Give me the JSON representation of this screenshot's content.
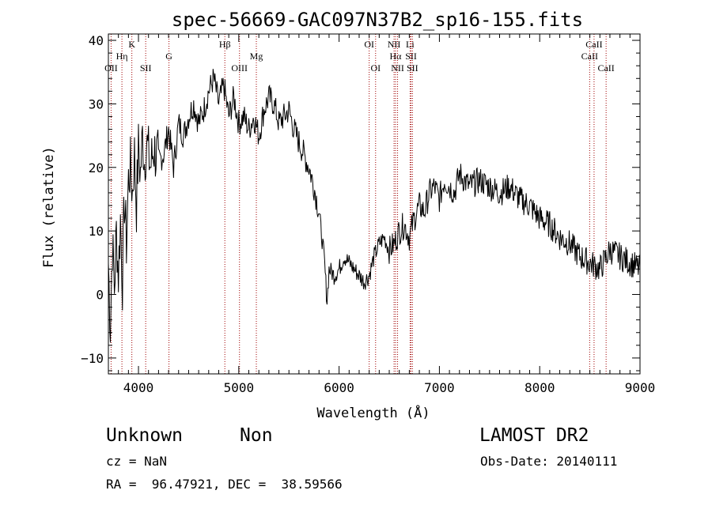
{
  "chart_data": {
    "type": "line",
    "title": "spec-56669-GAC097N37B2_sp16-155.fits",
    "xlabel": "Wavelength (Å)",
    "ylabel": "Flux (relative)",
    "xlim": [
      3700,
      9000
    ],
    "ylim": [
      -12.5,
      41
    ],
    "x_ticks": [
      4000,
      5000,
      6000,
      7000,
      8000,
      9000
    ],
    "y_ticks": [
      -10,
      0,
      10,
      20,
      30,
      40
    ],
    "grid": false,
    "series": [
      {
        "color": "#000000",
        "x": [
          3700,
          3720,
          3740,
          3760,
          3780,
          3800,
          3820,
          3840,
          3860,
          3880,
          3900,
          3920,
          3940,
          3960,
          3980,
          4000,
          4020,
          4040,
          4060,
          4080,
          4100,
          4120,
          4150,
          4200,
          4250,
          4300,
          4350,
          4400,
          4450,
          4500,
          4550,
          4600,
          4650,
          4700,
          4750,
          4800,
          4850,
          4900,
          4950,
          5000,
          5050,
          5100,
          5150,
          5200,
          5250,
          5300,
          5350,
          5400,
          5450,
          5500,
          5550,
          5600,
          5650,
          5700,
          5750,
          5800,
          5850,
          5880,
          5900,
          5950,
          6000,
          6050,
          6100,
          6150,
          6200,
          6250,
          6300,
          6350,
          6400,
          6450,
          6500,
          6550,
          6600,
          6650,
          6700,
          6750,
          6800,
          6850,
          6900,
          6950,
          7000,
          7050,
          7100,
          7150,
          7200,
          7250,
          7300,
          7400,
          7500,
          7600,
          7700,
          7800,
          7900,
          8000,
          8100,
          8200,
          8300,
          8400,
          8500,
          8600,
          8700,
          8800,
          8900,
          9000
        ],
        "y": [
          5,
          -5,
          8,
          1,
          10,
          3,
          12,
          2,
          15,
          8,
          18,
          20,
          16,
          22,
          14,
          23,
          19,
          25,
          21,
          24,
          22,
          20,
          23,
          21,
          22,
          26,
          20,
          27,
          25,
          28,
          30,
          27,
          29,
          32,
          34,
          30,
          33,
          28,
          31,
          27,
          28,
          26,
          28,
          25,
          29,
          31,
          30,
          27,
          28,
          29,
          26,
          24,
          22,
          20,
          17,
          13,
          6,
          -1,
          4,
          3,
          4,
          6,
          5,
          4,
          3,
          2,
          3,
          6,
          8,
          9,
          7,
          8,
          10,
          11,
          9,
          12,
          14,
          13,
          16,
          17,
          15,
          18,
          17,
          16,
          19,
          18,
          17,
          18,
          17,
          16,
          17,
          15,
          14,
          12,
          11,
          9,
          8,
          6,
          5,
          4,
          7,
          6,
          5,
          4
        ]
      }
    ],
    "lines": [
      {
        "label": "OII",
        "x": 3727
      },
      {
        "label": "Hη",
        "x": 3835
      },
      {
        "label": "K",
        "x": 3934
      },
      {
        "label": "SII",
        "x": 4072
      },
      {
        "label": "G",
        "x": 4304
      },
      {
        "label": "Hβ",
        "x": 4861
      },
      {
        "label": "OIII",
        "x": 5007
      },
      {
        "label": "Mg",
        "x": 5175
      },
      {
        "label": "OI",
        "x": 6300
      },
      {
        "label": "OI",
        "x": 6364
      },
      {
        "label": "Hα",
        "x": 6563
      },
      {
        "label": "NII",
        "x": 6548
      },
      {
        "label": "NII",
        "x": 6583
      },
      {
        "label": "SII",
        "x": 6717
      },
      {
        "label": "Li",
        "x": 6708
      },
      {
        "label": "SII",
        "x": 6731
      },
      {
        "label": "CaII",
        "x": 8498
      },
      {
        "label": "CaII",
        "x": 8542
      },
      {
        "label": "CaII",
        "x": 8662
      }
    ]
  },
  "info": {
    "class": "Unknown",
    "subclass": "Non",
    "survey": "LAMOST DR2",
    "cz": "cz = NaN",
    "obs_date": "Obs-Date: 20140111",
    "coords": "RA =  96.47921, DEC =  38.59566"
  }
}
